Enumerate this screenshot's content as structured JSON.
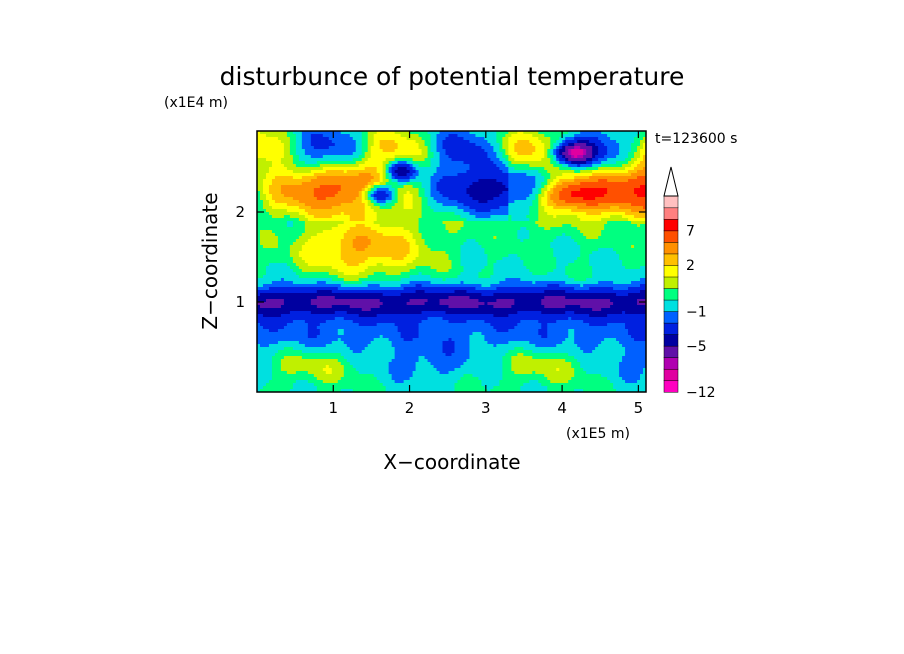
{
  "chart_data": {
    "type": "heatmap",
    "title": "disturbunce of potential temperature",
    "xlabel": "X−coordinate",
    "ylabel": "Z−coordinate",
    "x_unit": "(x1E5 m)",
    "y_unit": "(x1E4 m)",
    "time_label": "t=123600 s",
    "xlim": [
      0,
      5.1
    ],
    "ylim": [
      0,
      2.9
    ],
    "x_ticks": [
      {
        "value": 1,
        "label": "1"
      },
      {
        "value": 2,
        "label": "2"
      },
      {
        "value": 3,
        "label": "3"
      },
      {
        "value": 4,
        "label": "4"
      },
      {
        "value": 5,
        "label": "5"
      }
    ],
    "y_ticks": [
      {
        "value": 1,
        "label": "1"
      },
      {
        "value": 2,
        "label": "2"
      }
    ],
    "colorbar": {
      "colors": [
        "#ff00c0",
        "#e000a0",
        "#b000b0",
        "#6010a8",
        "#0000a0",
        "#0020e0",
        "#0060ff",
        "#00e0e0",
        "#00ff80",
        "#c0f000",
        "#ffff00",
        "#ffc000",
        "#ff9000",
        "#ff5000",
        "#ff0000",
        "#ff8080",
        "#ffc0c0"
      ],
      "levels": [
        -12,
        -5,
        -1,
        2,
        7
      ],
      "labels": [
        "−12",
        "−5",
        "−1",
        "2",
        "7"
      ],
      "extend_max": true
    },
    "grid": false
  }
}
